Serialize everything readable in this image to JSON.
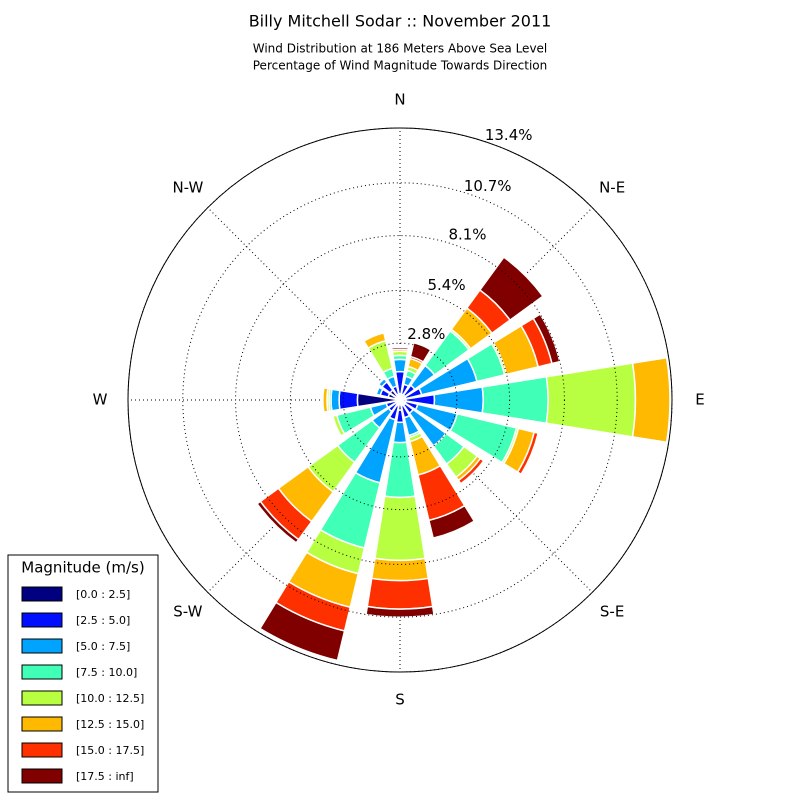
{
  "chart_data": {
    "type": "windrose",
    "title": "Billy Mitchell Sodar :: November 2011",
    "subtitle_lines": [
      "Wind Distribution at 186 Meters Above Sea Level",
      "Percentage of Wind Magnitude Towards Direction"
    ],
    "categories": [
      "N",
      null,
      "N-E",
      null,
      "E",
      null,
      "S-E",
      null,
      "S",
      null,
      "S-W",
      null,
      "W",
      null,
      "N-W",
      null
    ],
    "rlim": [
      0,
      13.4
    ],
    "rticks": [
      {
        "value": 2.8,
        "label": "2.8%"
      },
      {
        "value": 5.4,
        "label": "5.4%"
      },
      {
        "value": 8.1,
        "label": "8.1%"
      },
      {
        "value": 10.7,
        "label": "10.7%"
      },
      {
        "value": 13.4,
        "label": "13.4%"
      }
    ],
    "grid": true,
    "legend": "lower left",
    "legend_title": "Magnitude (m/s)",
    "series": [
      {
        "name": "[0.0 : 2.5]",
        "color": "#000080",
        "values": [
          0.3,
          0.3,
          0.3,
          0.3,
          0.3,
          0.3,
          0.3,
          0.3,
          0.5,
          0.3,
          0.2,
          0.2,
          2.1,
          0.6,
          0.6,
          0.3
        ]
      },
      {
        "name": "[2.5 : 5.0]",
        "color": "#0010ff",
        "values": [
          1.1,
          0.5,
          0.6,
          0.8,
          1.4,
          0.6,
          0.5,
          0.6,
          0.6,
          0.7,
          0.5,
          0.5,
          0.9,
          0.4,
          0.5,
          0.4
        ]
      },
      {
        "name": "[5.0 : 7.5]",
        "color": "#00a4ff",
        "values": [
          0.6,
          0.4,
          1.2,
          2.8,
          2.4,
          2.0,
          2.0,
          0.9,
          1.0,
          3.2,
          1.0,
          0.8,
          0.4,
          0.2,
          0.2,
          0.5
        ]
      },
      {
        "name": "[7.5 : 10.0]",
        "color": "#40ffb7",
        "values": [
          0.2,
          0.3,
          2.1,
          1.4,
          3.2,
          3.0,
          1.1,
          0.1,
          2.7,
          3.3,
          2.1,
          1.7,
          0.1,
          0,
          0,
          0.4
        ]
      },
      {
        "name": "[10.0 : 12.5]",
        "color": "#b7ff40",
        "values": [
          0.2,
          0.2,
          0.1,
          0.1,
          4.3,
          0.1,
          0.8,
          0.2,
          3.1,
          1.3,
          1.8,
          0.2,
          0.1,
          0,
          0,
          1.4
        ]
      },
      {
        "name": "[12.5 : 15.0]",
        "color": "#ffb900",
        "values": [
          0.1,
          0.4,
          1.3,
          1.6,
          1.7,
          0.8,
          0.2,
          1.7,
          1.0,
          1.7,
          1.8,
          0,
          0.2,
          0,
          0,
          0.4
        ]
      },
      {
        "name": "[15.0 : 17.5]",
        "color": "#ff3000",
        "values": [
          0,
          0.1,
          1.1,
          0.7,
          0,
          0.2,
          0.2,
          2.3,
          1.4,
          1.2,
          1.1,
          0,
          0,
          0,
          0,
          0
        ]
      },
      {
        "name": "[17.5 : inf]",
        "color": "#800000",
        "values": [
          0.1,
          0.7,
          2.0,
          0.4,
          0,
          0,
          0,
          0.9,
          0.4,
          1.5,
          0.2,
          0,
          0,
          0,
          0,
          0
        ]
      }
    ]
  }
}
